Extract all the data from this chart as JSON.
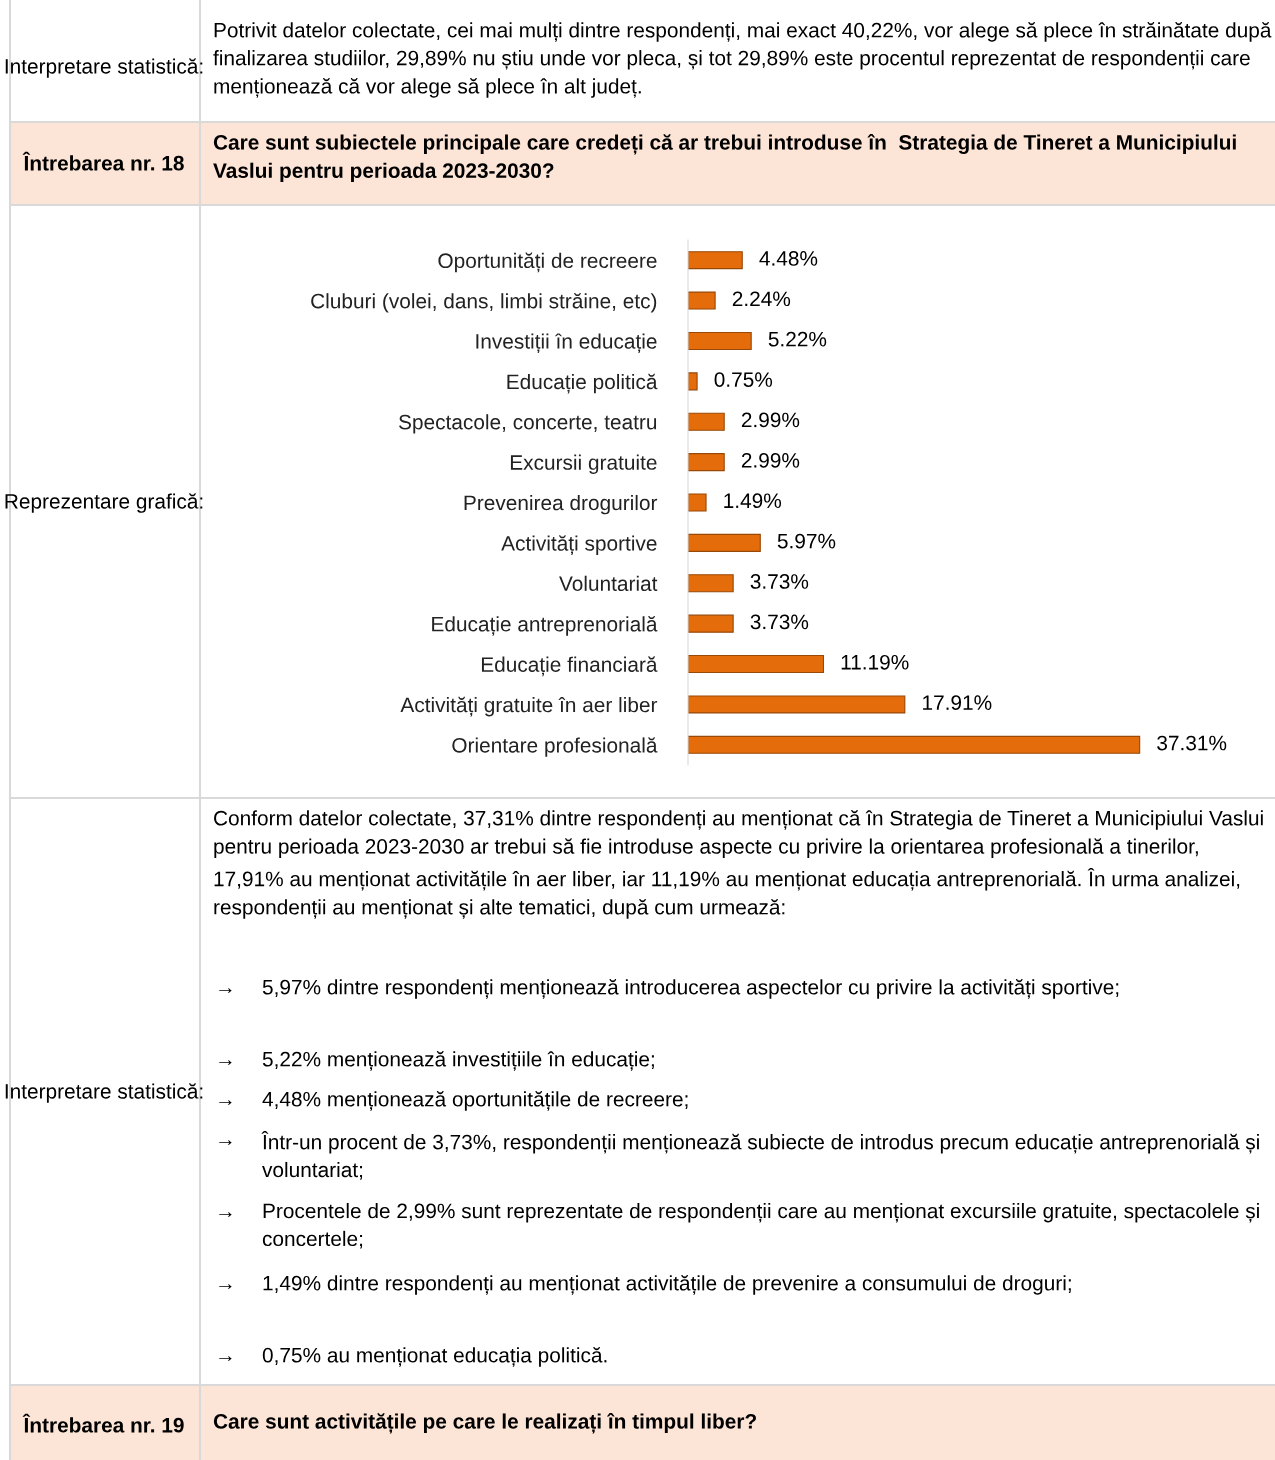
{
  "chart_data": {
    "type": "bar",
    "orientation": "horizontal",
    "categories": [
      "Oportunități de recreere",
      "Cluburi (volei, dans, limbi străine, etc)",
      "Investiții în educație",
      "Educație politică",
      "Spectacole, concerte, teatru",
      "Excursii gratuite",
      "Prevenirea drogurilor",
      "Activități sportive",
      "Voluntariat",
      "Educație antreprenorială",
      "Educație financiară",
      "Activități gratuite în aer liber",
      "Orientare profesională"
    ],
    "values": [
      4.48,
      2.24,
      5.22,
      0.75,
      2.99,
      2.99,
      1.49,
      5.97,
      3.73,
      3.73,
      11.19,
      17.91,
      37.31
    ],
    "value_labels": [
      "4.48%",
      "2.24%",
      "5.22%",
      "0.75%",
      "2.99%",
      "2.99%",
      "1.49%",
      "5.97%",
      "3.73%",
      "3.73%",
      "11.19%",
      "17.91%",
      "37.31%"
    ],
    "color": "#e46c0a",
    "grid": false,
    "legend": false,
    "tick_labels": "y",
    "annotations": [
      "Interpretare statistică:",
      "Potrivit datelor colectate, cei mai mulți dintre respondenți, mai exact 40,22%, vor alege să plece în străinătate după finalizarea studiilor, 29,89% nu știu unde vor pleca, și tot 29,89% este procentul reprezentat de respondenții care menționează că vor alege să plece în alt județ.",
      "Întrebarea nr. 18",
      "Care sunt subiectele principale care credeți că ar trebui introduse în  Strategia de Tineret a Municipiului Vaslui pentru perioada 2023-2030?",
      "Reprezentare grafică:",
      "Interpretare statistică:",
      "Conform datelor colectate, 37,31% dintre respondenți au menționat că în Strategia de Tineret a Municipiului Vaslui pentru perioada 2023-2030 ar trebui să fie introduse aspecte cu privire la orientarea profesională a tinerilor, 17,91% au menționat activitățile în aer liber, iar 11,19% au menționat educația antreprenorială. În urma analizei, respondenții au menționat și alte tematici, după cum urmează:",
      "→ 5,97% dintre respondenți menționează introducerea aspectelor cu privire la activități sportive;",
      "→ 5,22% menționează investițiile în educație;",
      "→ 4,48% menționează oportunitățile de recreere;",
      "→ Într-un procent de 3,73%, respondenții menționează subiecte de introdus precum educație antreprenorială și voluntariat;",
      "→ Procentele de 2,99% sunt reprezentate de respondenții care au menționat excursiile gratuite, spectacolele și concertele;",
      "→ 1,49% dintre respondenți au menționat activitățile de prevenire a consumului de droguri;",
      "→ 0,75% au menționat educația politică.",
      "Întrebarea nr. 19",
      "Care sunt activitățile pe care le realizați în timpul liber?"
    ]
  }
}
